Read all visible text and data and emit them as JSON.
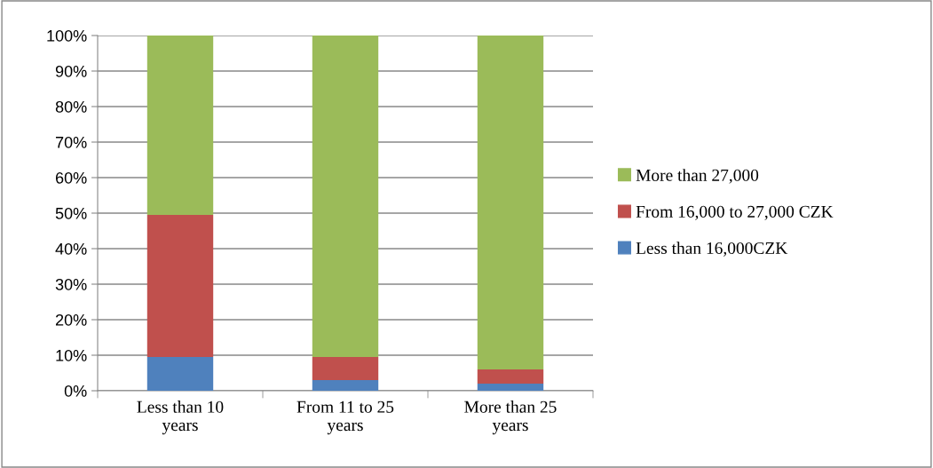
{
  "chart_data": {
    "type": "bar",
    "stacked": true,
    "categories": [
      "Less than 10\nyears",
      "From 11 to 25\nyears",
      "More than 25\nyears"
    ],
    "series": [
      {
        "name": "Less than 16,000CZK",
        "color": "#4f81bd",
        "values": [
          9.5,
          3,
          2
        ]
      },
      {
        "name": "From 16,000 to 27,000 CZK",
        "color": "#c0504d",
        "values": [
          40,
          6.5,
          4
        ]
      },
      {
        "name": "More than 27,000",
        "color": "#9bbb59",
        "values": [
          50.5,
          90.5,
          94
        ]
      }
    ],
    "ylim": [
      0,
      100
    ],
    "yticks": [
      {
        "value": 0,
        "label": "0%"
      },
      {
        "value": 10,
        "label": "10%"
      },
      {
        "value": 20,
        "label": "20%"
      },
      {
        "value": 30,
        "label": "30%"
      },
      {
        "value": 40,
        "label": "40%"
      },
      {
        "value": 50,
        "label": "50%"
      },
      {
        "value": 60,
        "label": "60%"
      },
      {
        "value": 70,
        "label": "70%"
      },
      {
        "value": 80,
        "label": "80%"
      },
      {
        "value": 90,
        "label": "90%"
      },
      {
        "value": 100,
        "label": "100%"
      }
    ],
    "grid": "y",
    "legend": "right"
  }
}
